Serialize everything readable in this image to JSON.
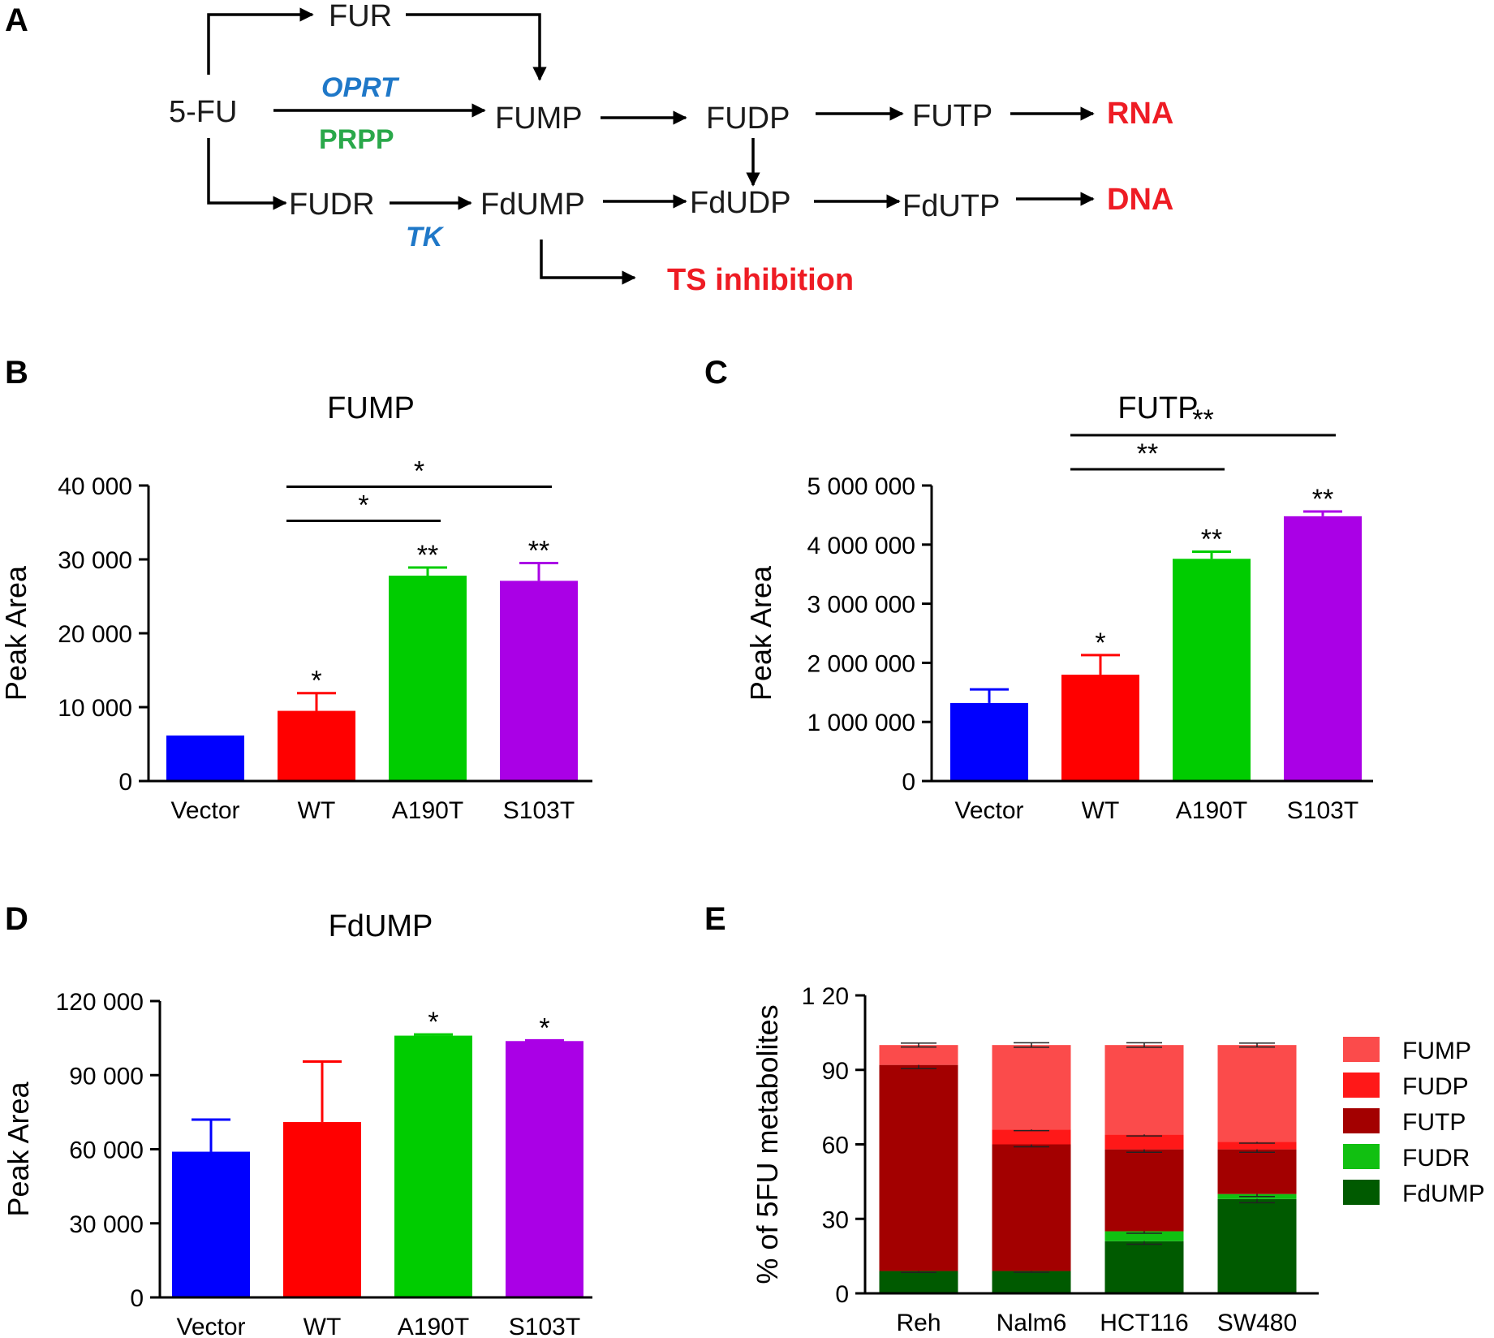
{
  "panel_labels": [
    "A",
    "B",
    "C",
    "D",
    "E"
  ],
  "pathway": {
    "nodes": {
      "fu": "5-FU",
      "fur": "FUR",
      "fump": "FUMP",
      "fudp": "FUDP",
      "futp": "FUTP",
      "fudr": "FUDR",
      "fdump": "FdUMP",
      "fdudp": "FdUDP",
      "fdutp": "FdUTP"
    },
    "enzymes": {
      "oprt": "OPRT",
      "prpp": "PRPP",
      "tk": "TK"
    },
    "outputs": {
      "rna": "RNA",
      "dna": "DNA",
      "ts": "TS inhibition"
    },
    "colors": {
      "enzyme": "#1f78c8",
      "cofactor": "#2aa84a",
      "output": "#ee1c24"
    }
  },
  "chart_data": [
    {
      "panel": "B",
      "type": "bar",
      "title": "FUMP",
      "ylabel": "Peak Area",
      "ylim": [
        0,
        40000
      ],
      "yticks": [
        "0",
        "10 000",
        "20 000",
        "30 000",
        "40 000"
      ],
      "categories": [
        "Vector",
        "WT",
        "A190T",
        "S103T"
      ],
      "values": [
        6000,
        9500,
        27800,
        27100
      ],
      "errors": [
        0,
        2400,
        1100,
        2400
      ],
      "colors": [
        "#0000ff",
        "#ff0000",
        "#00cc00",
        "#aa00e6"
      ],
      "bar_stars": [
        "",
        "*",
        "**",
        "**"
      ],
      "comparisons": [
        {
          "from": 1,
          "to": 2,
          "label": "*"
        },
        {
          "from": 1,
          "to": 3,
          "label": "*"
        }
      ]
    },
    {
      "panel": "C",
      "type": "bar",
      "title": "FUTP",
      "ylabel": "Peak Area",
      "ylim": [
        0,
        5000000
      ],
      "yticks": [
        "0",
        "1 000 000",
        "2 000 000",
        "3 000 000",
        "4 000 000",
        "5 000 000"
      ],
      "categories": [
        "Vector",
        "WT",
        "A190T",
        "S103T"
      ],
      "values": [
        1320000,
        1800000,
        3760000,
        4480000
      ],
      "errors": [
        230000,
        330000,
        120000,
        80000
      ],
      "colors": [
        "#0000ff",
        "#ff0000",
        "#00cc00",
        "#aa00e6"
      ],
      "bar_stars": [
        "",
        "*",
        "**",
        "**"
      ],
      "comparisons": [
        {
          "from": 1,
          "to": 2,
          "label": "**"
        },
        {
          "from": 1,
          "to": 3,
          "label": "**"
        }
      ]
    },
    {
      "panel": "D",
      "type": "bar",
      "title": "FdUMP",
      "ylabel": "Peak Area",
      "ylim": [
        0,
        120000
      ],
      "yticks": [
        "0",
        "30 000",
        "60 000",
        "90 000",
        "120 000"
      ],
      "categories": [
        "Vector",
        "WT",
        "A190T",
        "S103T"
      ],
      "values": [
        59000,
        71000,
        106000,
        103800
      ],
      "errors": [
        13000,
        24500,
        500,
        300
      ],
      "colors": [
        "#0000ff",
        "#ff0000",
        "#00cc00",
        "#aa00e6"
      ],
      "bar_stars": [
        "",
        "",
        "*",
        "*"
      ],
      "comparisons": []
    },
    {
      "panel": "E",
      "type": "stacked-bar",
      "ylabel": "% of 5FU metabolites",
      "ylim": [
        0,
        120
      ],
      "yticks": [
        "0",
        "30",
        "60",
        "90",
        "1 20"
      ],
      "categories": [
        "Reh",
        "Nalm6",
        "HCT116",
        "SW480"
      ],
      "legend_position": "right",
      "series": [
        {
          "name": "FdUMP",
          "color": "#005a00",
          "values": [
            9,
            9,
            21,
            38
          ],
          "errors": [
            0.6,
            0.5,
            1.2,
            1.5
          ]
        },
        {
          "name": "FUDR",
          "color": "#11c011",
          "values": [
            0,
            0,
            4,
            2
          ],
          "errors": [
            0,
            0,
            0.8,
            1.0
          ]
        },
        {
          "name": "FUTP",
          "color": "#a30000",
          "values": [
            83,
            51,
            33,
            18
          ],
          "errors": [
            1.5,
            1.0,
            1.2,
            1.2
          ]
        },
        {
          "name": "FUDP",
          "color": "#ff1818",
          "values": [
            0,
            6,
            6,
            3
          ],
          "errors": [
            0,
            0.5,
            0.6,
            0.5
          ]
        },
        {
          "name": "FUMP",
          "color": "#fb4b4b",
          "values": [
            8,
            34,
            36,
            39
          ],
          "errors": [
            0.8,
            0.9,
            0.9,
            0.8
          ]
        }
      ],
      "legend_order": [
        "FUMP",
        "FUDP",
        "FUTP",
        "FUDR",
        "FdUMP"
      ]
    }
  ]
}
